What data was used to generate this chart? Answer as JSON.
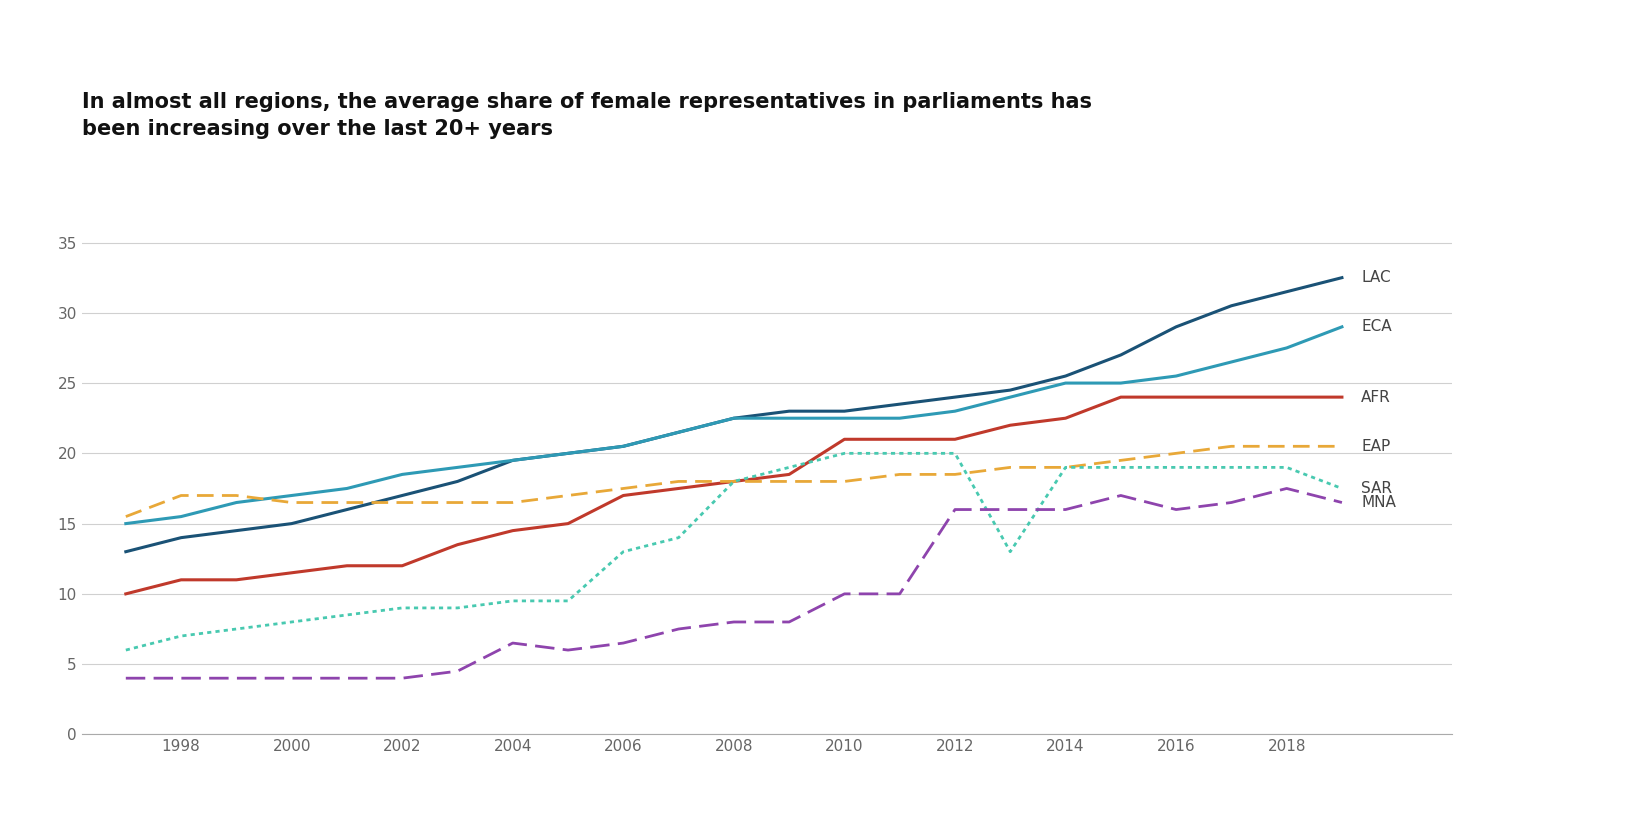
{
  "title": "In almost all regions, the average share of female representatives in parliaments has\nbeen increasing over the last 20+ years",
  "years": [
    1997,
    1998,
    1999,
    2000,
    2001,
    2002,
    2003,
    2004,
    2005,
    2006,
    2007,
    2008,
    2009,
    2010,
    2011,
    2012,
    2013,
    2014,
    2015,
    2016,
    2017,
    2018,
    2019
  ],
  "series": {
    "LAC": {
      "color": "#1a5276",
      "linestyle": "solid",
      "linewidth": 2.2,
      "values": [
        13.0,
        14.0,
        14.5,
        15.0,
        16.0,
        17.0,
        18.0,
        19.5,
        20.0,
        20.5,
        21.5,
        22.5,
        23.0,
        23.0,
        23.5,
        24.0,
        24.5,
        25.5,
        27.0,
        29.0,
        30.5,
        31.5,
        32.5
      ]
    },
    "ECA": {
      "color": "#2e9ab5",
      "linestyle": "solid",
      "linewidth": 2.2,
      "values": [
        15.0,
        15.5,
        16.5,
        17.0,
        17.5,
        18.5,
        19.0,
        19.5,
        20.0,
        20.5,
        21.5,
        22.5,
        22.5,
        22.5,
        22.5,
        23.0,
        24.0,
        25.0,
        25.0,
        25.5,
        26.5,
        27.5,
        29.0
      ]
    },
    "AFR": {
      "color": "#c0392b",
      "linestyle": "solid",
      "linewidth": 2.2,
      "values": [
        10.0,
        11.0,
        11.0,
        11.5,
        12.0,
        12.0,
        13.5,
        14.5,
        15.0,
        17.0,
        17.5,
        18.0,
        18.5,
        21.0,
        21.0,
        21.0,
        22.0,
        22.5,
        24.0,
        24.0,
        24.0,
        24.0,
        24.0
      ]
    },
    "EAP": {
      "color": "#e8a838",
      "linestyle": "dashed",
      "linewidth": 2.0,
      "values": [
        15.5,
        17.0,
        17.0,
        16.5,
        16.5,
        16.5,
        16.5,
        16.5,
        17.0,
        17.5,
        18.0,
        18.0,
        18.0,
        18.0,
        18.5,
        18.5,
        19.0,
        19.0,
        19.5,
        20.0,
        20.5,
        20.5,
        20.5
      ]
    },
    "SAR": {
      "color": "#48c9b0",
      "linestyle": "dotted",
      "linewidth": 2.0,
      "values": [
        6.0,
        7.0,
        7.5,
        8.0,
        8.5,
        9.0,
        9.0,
        9.5,
        9.5,
        13.0,
        14.0,
        18.0,
        19.0,
        20.0,
        20.0,
        20.0,
        13.0,
        19.0,
        19.0,
        19.0,
        19.0,
        19.0,
        17.5
      ]
    },
    "MNA": {
      "color": "#8e44ad",
      "linestyle": "dashed",
      "linewidth": 2.0,
      "values": [
        4.0,
        4.0,
        4.0,
        4.0,
        4.0,
        4.0,
        4.5,
        6.5,
        6.0,
        6.5,
        7.5,
        8.0,
        8.0,
        10.0,
        10.0,
        16.0,
        16.0,
        16.0,
        17.0,
        16.0,
        16.5,
        17.5,
        16.5
      ]
    }
  },
  "ylim": [
    0,
    36
  ],
  "yticks": [
    0,
    5,
    10,
    15,
    20,
    25,
    30,
    35
  ],
  "xlim": [
    1996.2,
    2021.0
  ],
  "xticks": [
    1998,
    2000,
    2002,
    2004,
    2006,
    2008,
    2010,
    2012,
    2014,
    2016,
    2018
  ],
  "background_color": "#ffffff",
  "grid_color": "#d0d0d0",
  "title_fontsize": 15,
  "tick_fontsize": 11,
  "label_fontsize": 11
}
